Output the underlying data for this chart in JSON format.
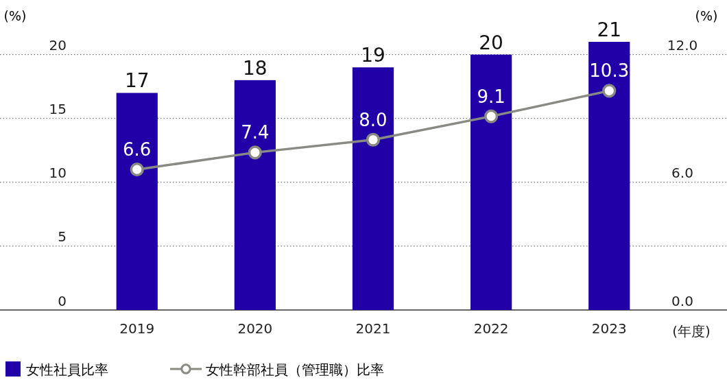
{
  "chart_data": {
    "type": "bar",
    "categories": [
      "2019",
      "2020",
      "2021",
      "2022",
      "2023"
    ],
    "series": [
      {
        "name": "女性社員比率",
        "color": "#2200a8",
        "values": [
          17,
          18,
          19,
          20,
          21
        ]
      },
      {
        "name": "女性幹部社員（管理職）比率",
        "type": "line",
        "axis": "y2",
        "color": "#8a8a84",
        "values": [
          6.6,
          7.4,
          8.0,
          9.1,
          10.3
        ],
        "value_labels": [
          "6.6",
          "7.4",
          "8.0",
          "9.1",
          "10.3"
        ]
      }
    ],
    "ylim": [
      0,
      21
    ],
    "yticks": [
      0,
      5,
      10,
      15,
      20
    ],
    "y2lim": [
      0,
      12.6
    ],
    "y2ticks": [
      {
        "value": 0,
        "label": "0.0"
      },
      {
        "value": 6,
        "label": "6.0"
      },
      {
        "value": 12,
        "label": "12.0"
      }
    ],
    "ylabel": "(%)",
    "y2label": "(%)",
    "annotations": [
      "(年度)"
    ],
    "grid": "y",
    "data_labels": true,
    "legend": "bottom",
    "marker": "circle",
    "line_style": "solid"
  }
}
